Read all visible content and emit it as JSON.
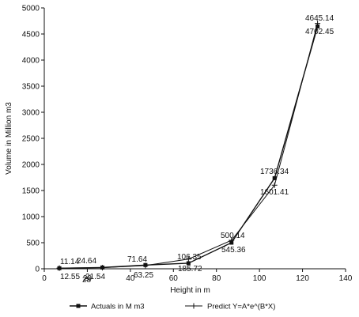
{
  "chart_data": {
    "type": "line",
    "title": "",
    "xlabel": "Height in m",
    "ylabel": "Volume in Million m3",
    "xlim": [
      0,
      140
    ],
    "ylim": [
      0,
      5000
    ],
    "xticks": [
      0,
      20,
      40,
      60,
      80,
      100,
      120,
      140
    ],
    "yticks": [
      0,
      500,
      1000,
      1500,
      2000,
      2500,
      3000,
      3500,
      4000,
      4500,
      5000
    ],
    "grid": false,
    "legend_position": "bottom",
    "series": [
      {
        "name": "Actuals in M m3",
        "marker": "square",
        "x": [
          7,
          27,
          47,
          67,
          87,
          107,
          127
        ],
        "y": [
          11.14,
          24.64,
          71.64,
          106.35,
          500.14,
          1736.34,
          4645.14
        ],
        "labels": [
          "11.14",
          "24.64",
          "71.64",
          "106.35",
          "500.14",
          "1736.34",
          "4645.14"
        ]
      },
      {
        "name": "Predict Y=A*e^(B*X)",
        "marker": "plus",
        "x": [
          7,
          27,
          47,
          67,
          87,
          107,
          127
        ],
        "y": [
          12.55,
          21.54,
          63.25,
          185.72,
          545.36,
          1601.41,
          4702.45
        ],
        "labels": [
          "12.55",
          "21.54",
          "63.25",
          "185.72",
          "545.36",
          "1601.41",
          "4702.45"
        ]
      }
    ],
    "extra_labels": [
      "28"
    ]
  }
}
